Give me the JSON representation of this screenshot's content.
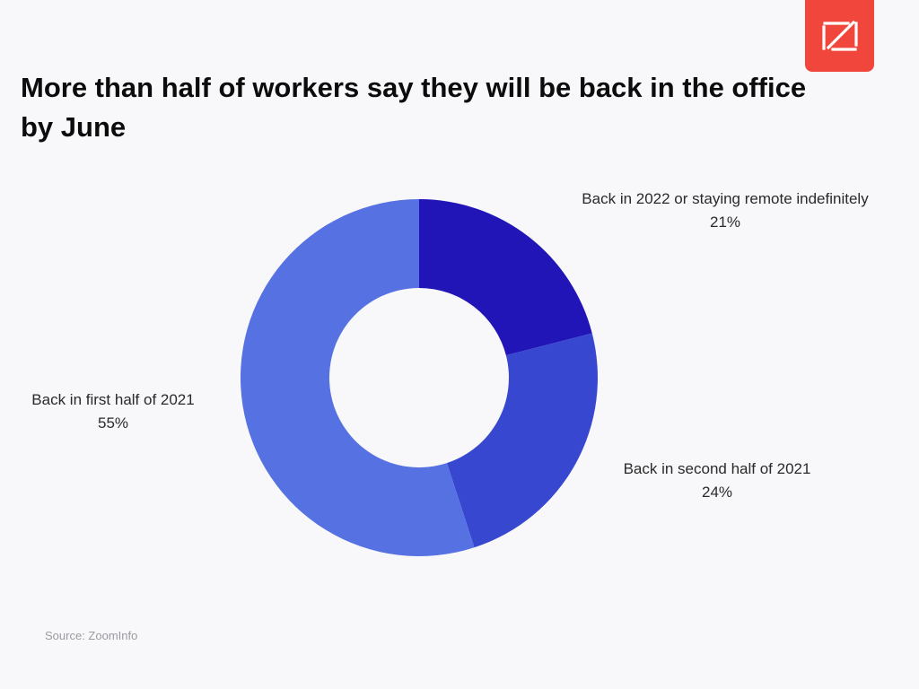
{
  "logo": {
    "name": "zoominfo-logo-icon",
    "color": "#f0463c"
  },
  "title": "More than half of workers say they will be back in the office by June",
  "source": "Source: ZoomInfo",
  "chart_data": {
    "type": "pie",
    "variant": "donut",
    "title": "More than half of workers say they will be back in the office by June",
    "start": "12 o'clock, clockwise",
    "slices": [
      {
        "label": "Back in 2022 or staying remote indefinitely",
        "value": 21,
        "display": "21%",
        "color": "#2115b8"
      },
      {
        "label": "Back in second half of 2021",
        "value": 24,
        "display": "24%",
        "color": "#3847d0"
      },
      {
        "label": "Back in first half of 2021",
        "value": 55,
        "display": "55%",
        "color": "#5672e2"
      }
    ]
  }
}
